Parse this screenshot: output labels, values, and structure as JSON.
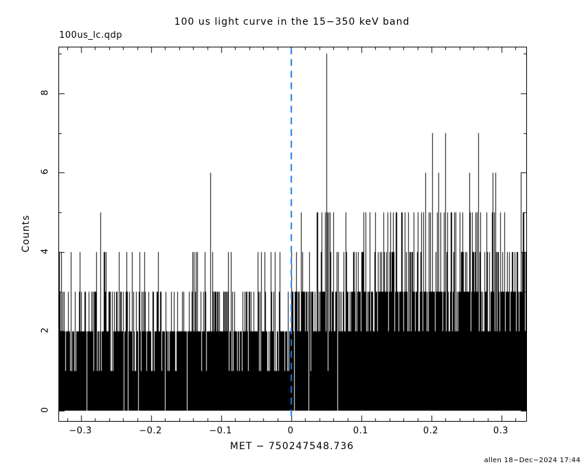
{
  "file_label": "100us_lc.qdp",
  "footer": {
    "credit": "allen 18−Dec−2024 17:44"
  },
  "chart_data": {
    "type": "bar",
    "title": "100 us light curve in the 15−350 keV band",
    "xlabel": "MET − 750247548.736",
    "ylabel": "Counts",
    "xlim": [
      -0.3314,
      0.3353
    ],
    "ylim": [
      -0.26,
      9.16
    ],
    "grid": false,
    "legend": "none",
    "x_ticks": [
      {
        "v": -0.3,
        "label": "−0.3"
      },
      {
        "v": -0.2,
        "label": "−0.2"
      },
      {
        "v": -0.1,
        "label": "−0.1"
      },
      {
        "v": 0,
        "label": "0"
      },
      {
        "v": 0.1,
        "label": "0.1"
      },
      {
        "v": 0.2,
        "label": "0.2"
      },
      {
        "v": 0.3,
        "label": "0.3"
      }
    ],
    "y_ticks": [
      {
        "v": 0,
        "label": "0"
      },
      {
        "v": 2,
        "label": "2"
      },
      {
        "v": 4,
        "label": "4"
      },
      {
        "v": 6,
        "label": "6"
      },
      {
        "v": 8,
        "label": "8"
      }
    ],
    "x_minor_step": 0.02,
    "y_minor_step": 1,
    "major_tick_len": 8,
    "minor_tick_len": 4,
    "bin_width_s": 0.0001,
    "data_color": "#000000",
    "trigger_line": {
      "x": 0,
      "color": "#1a7ce8",
      "style": "dashed",
      "dash": [
        10,
        7
      ],
      "width": 2
    },
    "noise_model": {
      "distribution": "poisson",
      "seed": 20241218,
      "bins_per_column": 9,
      "pre_trigger_mean": 0.8,
      "post_trigger_mean_start": 1.15,
      "post_trigger_mean_end": 1.45,
      "random_cap_pre": 4,
      "random_cap_post": 5,
      "zero_gap_prob": 0.02
    },
    "notable_spikes": [
      {
        "t": -0.273,
        "counts": 5
      },
      {
        "t": -0.116,
        "counts": 6
      },
      {
        "t": 0.036,
        "counts": 5
      },
      {
        "t": 0.048,
        "counts": 5
      },
      {
        "t": 0.05,
        "counts": 9
      },
      {
        "t": 0.053,
        "counts": 5
      },
      {
        "t": 0.103,
        "counts": 5
      },
      {
        "t": 0.106,
        "counts": 5
      },
      {
        "t": 0.112,
        "counts": 5
      },
      {
        "t": 0.12,
        "counts": 5
      },
      {
        "t": 0.131,
        "counts": 5
      },
      {
        "t": 0.141,
        "counts": 5
      },
      {
        "t": 0.145,
        "counts": 5
      },
      {
        "t": 0.162,
        "counts": 5
      },
      {
        "t": 0.167,
        "counts": 5
      },
      {
        "t": 0.18,
        "counts": 5
      },
      {
        "t": 0.188,
        "counts": 5
      },
      {
        "t": 0.191,
        "counts": 6
      },
      {
        "t": 0.196,
        "counts": 5
      },
      {
        "t": 0.201,
        "counts": 7
      },
      {
        "t": 0.208,
        "counts": 5
      },
      {
        "t": 0.21,
        "counts": 6
      },
      {
        "t": 0.22,
        "counts": 7
      },
      {
        "t": 0.223,
        "counts": 5
      },
      {
        "t": 0.24,
        "counts": 5
      },
      {
        "t": 0.244,
        "counts": 5
      },
      {
        "t": 0.254,
        "counts": 6
      },
      {
        "t": 0.255,
        "counts": 5
      },
      {
        "t": 0.265,
        "counts": 5
      },
      {
        "t": 0.267,
        "counts": 7
      },
      {
        "t": 0.27,
        "counts": 5
      },
      {
        "t": 0.278,
        "counts": 5
      },
      {
        "t": 0.287,
        "counts": 6
      },
      {
        "t": 0.289,
        "counts": 5
      },
      {
        "t": 0.291,
        "counts": 6
      },
      {
        "t": 0.298,
        "counts": 5
      },
      {
        "t": 0.304,
        "counts": 5
      },
      {
        "t": 0.327,
        "counts": 6
      },
      {
        "t": 0.33,
        "counts": 5
      }
    ]
  }
}
